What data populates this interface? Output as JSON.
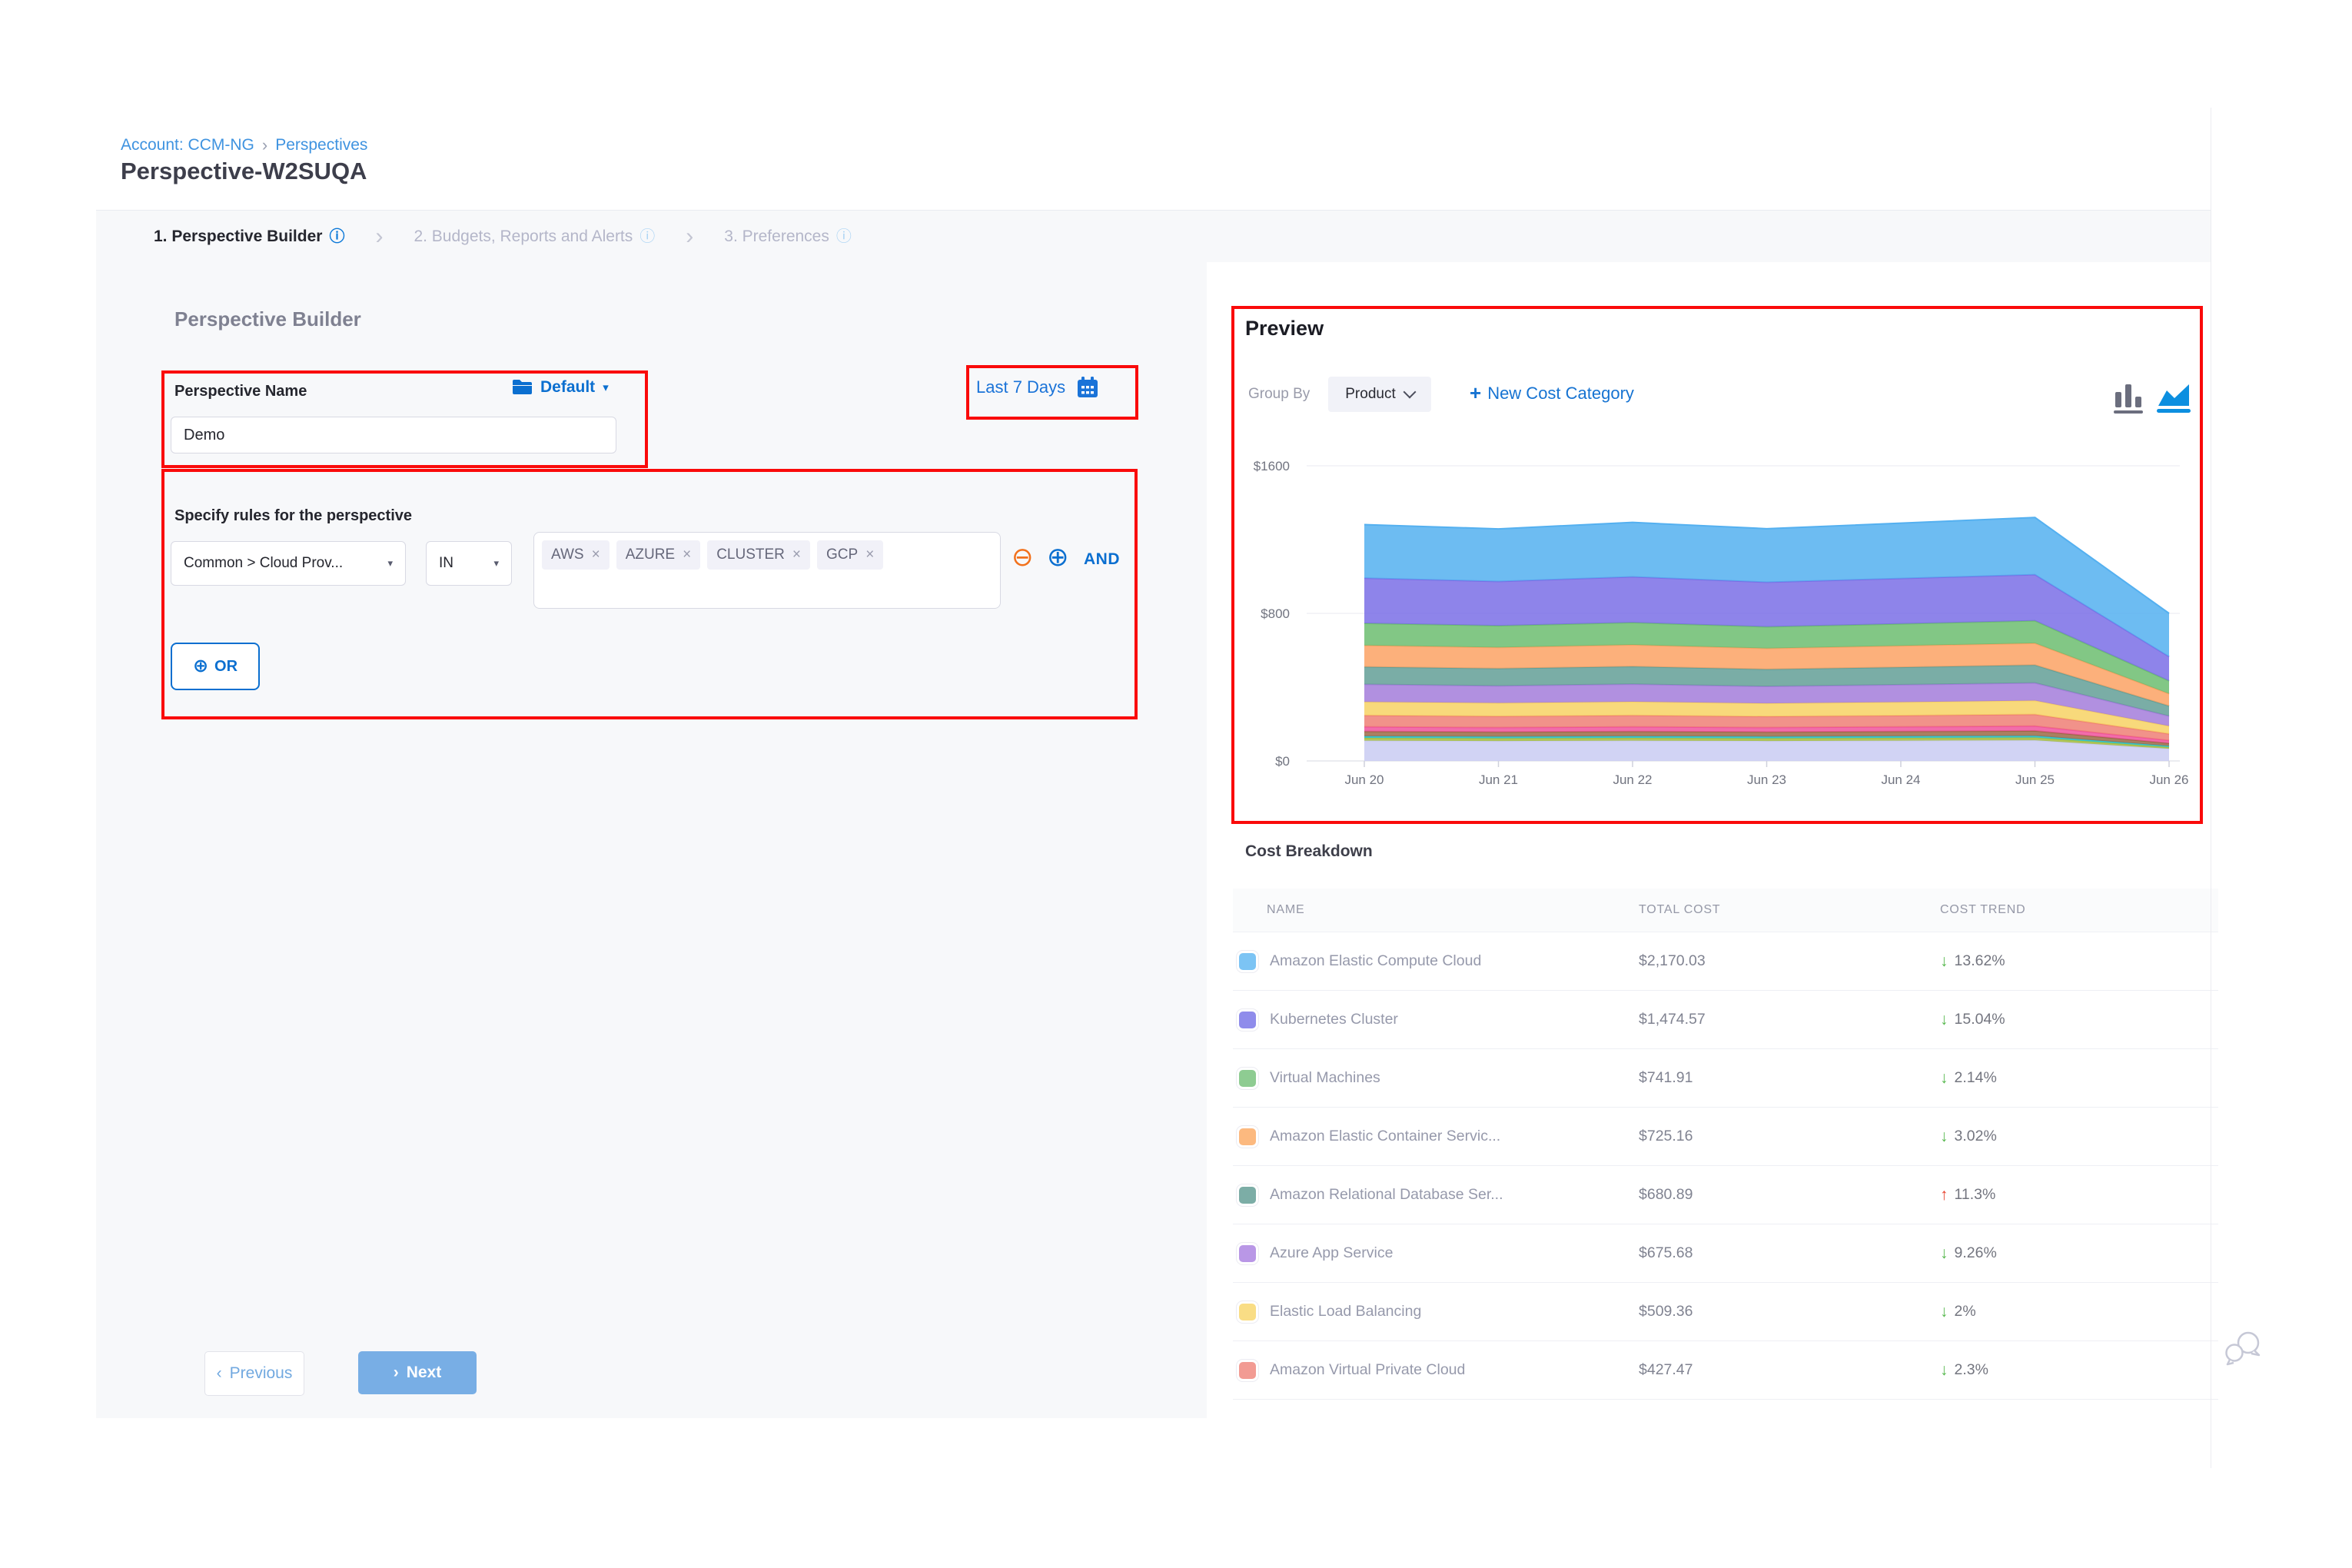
{
  "icons": {
    "info": "ⓘ",
    "caret_down": "▾",
    "breadcrumb_sep": "›",
    "tab_sep": "›",
    "chevron_left": "‹",
    "chevron_right": "›",
    "close": "×",
    "plus": "+",
    "plus_circle": "⊕",
    "minus_circle": "⊖",
    "arrow_up": "↑",
    "arrow_down": "↓"
  },
  "colors": {
    "accent_blue": "#0b6fd0",
    "link_blue": "#1a73d8",
    "annotation_red": "#fa0a0a",
    "trend_down_green": "#57b84e",
    "trend_up_red": "#e8432f"
  },
  "breadcrumb": {
    "account_label": "Account: CCM-NG",
    "page_label": "Perspectives"
  },
  "page_title": "Perspective-W2SUQA",
  "tabs": [
    {
      "label": "1. Perspective Builder",
      "active": true
    },
    {
      "label": "2. Budgets, Reports and Alerts",
      "active": false
    },
    {
      "label": "3. Preferences",
      "active": false
    }
  ],
  "builder": {
    "heading": "Perspective Builder",
    "name_label": "Perspective Name",
    "folder_button_label": "Default",
    "name_value": "Demo",
    "rules_label": "Specify rules for the perspective",
    "rule_field": "Common > Cloud Prov...",
    "rule_operator": "IN",
    "rule_values": [
      "AWS",
      "AZURE",
      "CLUSTER",
      "GCP"
    ],
    "and_label": "AND",
    "or_label": "OR",
    "previous_label": "Previous",
    "next_label": "Next"
  },
  "date_range_label": "Last 7 Days",
  "preview": {
    "heading": "Preview",
    "group_by_label": "Group By",
    "group_by_value": "Product",
    "new_cost_category_label": "New Cost Category",
    "chart_data": {
      "type": "area",
      "stacked": true,
      "x": [
        "Jun 20",
        "Jun 21",
        "Jun 22",
        "Jun 23",
        "Jun 24",
        "Jun 25",
        "Jun 26"
      ],
      "yticks": [
        {
          "label": "$1600",
          "value": 1600
        },
        {
          "label": "$800",
          "value": 800
        },
        {
          "label": "$0",
          "value": 0
        }
      ],
      "ylim": [
        0,
        1600
      ],
      "legend": "none",
      "grid": true,
      "series": [
        {
          "name": "Amazon Elastic Compute Cloud",
          "color": "#54b0f0",
          "values": [
            290,
            285,
            295,
            290,
            300,
            310,
            235
          ]
        },
        {
          "name": "Kubernetes Cluster",
          "color": "#7a6fe6",
          "values": [
            245,
            240,
            248,
            242,
            246,
            250,
            131
          ]
        },
        {
          "name": "Virtual Machines",
          "color": "#6cbd70",
          "values": [
            120,
            118,
            121,
            117,
            119,
            122,
            70
          ]
        },
        {
          "name": "Amazon Elastic Container Service",
          "color": "#fba264",
          "values": [
            116,
            114,
            117,
            113,
            116,
            118,
            66
          ]
        },
        {
          "name": "Amazon Relational Database Service",
          "color": "#639f97",
          "values": [
            95,
            94,
            96,
            93,
            95,
            97,
            55
          ]
        },
        {
          "name": "Azure App Service",
          "color": "#a37ddb",
          "values": [
            95,
            93,
            95,
            92,
            94,
            96,
            54
          ]
        },
        {
          "name": "Elastic Load Balancing",
          "color": "#f7d264",
          "values": [
            73,
            72,
            74,
            71,
            73,
            75,
            42
          ]
        },
        {
          "name": "Amazon Virtual Private Cloud",
          "color": "#ee7f75",
          "values": [
            62,
            61,
            62,
            60,
            61,
            63,
            36
          ]
        },
        {
          "name": "",
          "color": "#ef549b",
          "values": [
            25,
            24,
            25,
            24,
            25,
            26,
            15
          ]
        },
        {
          "name": "",
          "color": "#9b6a45",
          "values": [
            26,
            25,
            26,
            25,
            26,
            27,
            15
          ]
        },
        {
          "name": "",
          "color": "#2ec5d3",
          "values": [
            9,
            9,
            9,
            9,
            9,
            9,
            6
          ]
        },
        {
          "name": "",
          "color": "#a4bd3f",
          "values": [
            15,
            15,
            15,
            15,
            15,
            15,
            9
          ]
        },
        {
          "name": "",
          "color": "#c9cbf2",
          "values": [
            110,
            108,
            110,
            108,
            110,
            112,
            66
          ]
        }
      ]
    }
  },
  "cost_breakdown": {
    "heading": "Cost Breakdown",
    "columns": [
      "NAME",
      "TOTAL COST",
      "COST TREND"
    ],
    "rows": [
      {
        "name": "Amazon Elastic Compute Cloud",
        "swatch_color": "#7cc4f4",
        "total_cost": "$2,170.03",
        "trend": "13.62%",
        "direction": "down"
      },
      {
        "name": "Kubernetes Cluster",
        "swatch_color": "#8f8ceb",
        "total_cost": "$1,474.57",
        "trend": "15.04%",
        "direction": "down"
      },
      {
        "name": "Virtual Machines",
        "swatch_color": "#8ecc92",
        "total_cost": "$741.91",
        "trend": "2.14%",
        "direction": "down"
      },
      {
        "name": "Amazon Elastic Container Servic...",
        "swatch_color": "#fcb97f",
        "total_cost": "$725.16",
        "trend": "3.02%",
        "direction": "down"
      },
      {
        "name": "Amazon Relational Database Ser...",
        "swatch_color": "#7cada6",
        "total_cost": "$680.89",
        "trend": "11.3%",
        "direction": "up"
      },
      {
        "name": "Azure App Service",
        "swatch_color": "#b997e6",
        "total_cost": "$675.68",
        "trend": "9.26%",
        "direction": "down"
      },
      {
        "name": "Elastic Load Balancing",
        "swatch_color": "#f9dd85",
        "total_cost": "$509.36",
        "trend": "2%",
        "direction": "down"
      },
      {
        "name": "Amazon Virtual Private Cloud",
        "swatch_color": "#f29b93",
        "total_cost": "$427.47",
        "trend": "2.3%",
        "direction": "down"
      }
    ]
  }
}
